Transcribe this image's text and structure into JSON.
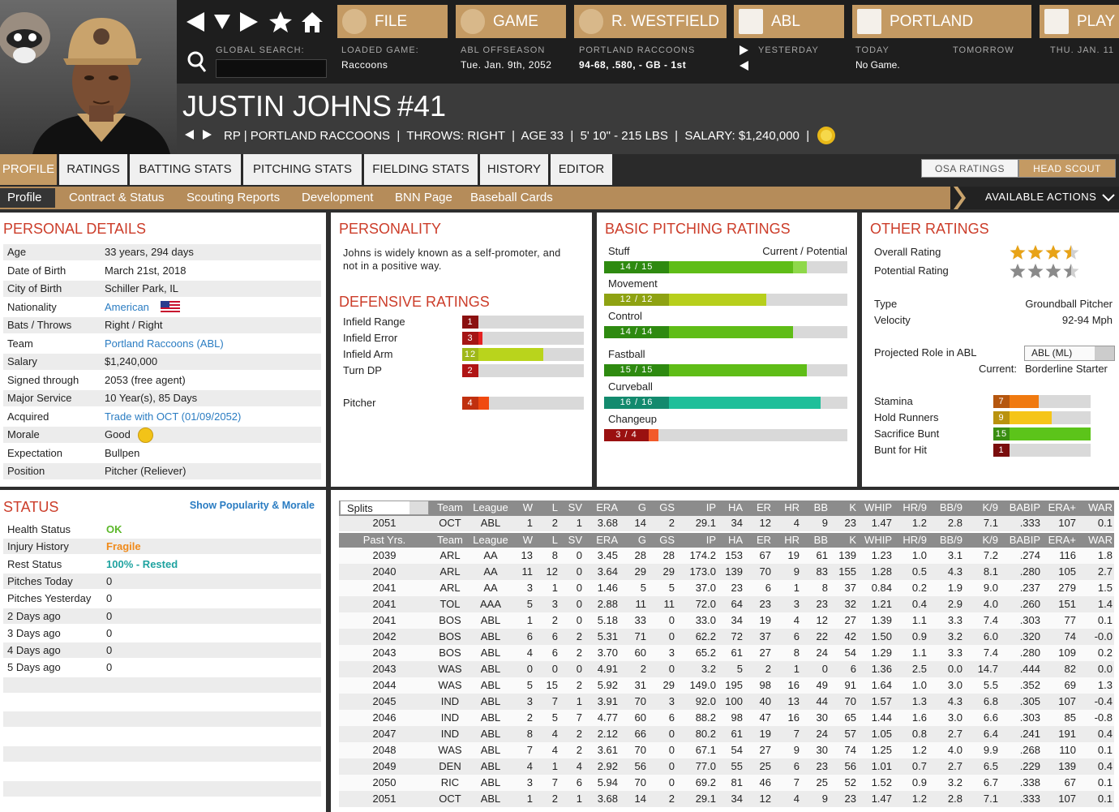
{
  "top_bar": {
    "global_search_label": "GLOBAL SEARCH:",
    "menu": [
      "FILE",
      "GAME",
      "R. WESTFIELD",
      "ABL",
      "PORTLAND",
      "PLAY"
    ],
    "info": [
      {
        "label": "LOADED GAME:",
        "value": "Raccoons"
      },
      {
        "label": "ABL OFFSEASON",
        "value": "Tue. Jan. 9th, 2052"
      },
      {
        "label": "PORTLAND RACCOONS",
        "value": "94-68, .580, - GB - 1st"
      }
    ],
    "schedule": [
      {
        "label": "YESTERDAY"
      },
      {
        "label": "TODAY",
        "value": "No Game."
      },
      {
        "label": "TOMORROW"
      },
      {
        "label": "THU. JAN. 11"
      }
    ]
  },
  "player": {
    "name": "JUSTIN JOHNS",
    "number": "#41",
    "info": "RP | PORTLAND RACCOONS  |  THROWS: RIGHT  |  AGE 33  |  5' 10\" - 215 LBS  |  SALARY: $1,240,000  |"
  },
  "tabs": [
    "PROFILE",
    "RATINGS",
    "BATTING STATS",
    "PITCHING STATS",
    "FIELDING STATS",
    "HISTORY",
    "EDITOR"
  ],
  "scout_toggle": [
    "OSA RATINGS",
    "HEAD SCOUT"
  ],
  "subnav": [
    "Profile",
    "Contract & Status",
    "Scouting Reports",
    "Development",
    "BNN Page",
    "Baseball Cards"
  ],
  "actions": "AVAILABLE ACTIONS",
  "personal_details": {
    "title": "PERSONAL DETAILS",
    "rows": [
      {
        "label": "Age",
        "value": "33 years, 294 days"
      },
      {
        "label": "Date of Birth",
        "value": "March 21st, 2018"
      },
      {
        "label": "City of Birth",
        "value": "Schiller Park, IL"
      },
      {
        "label": "Nationality",
        "value": "American",
        "color": "#2a7cc2"
      },
      {
        "label": "Bats / Throws",
        "value": "Right / Right"
      },
      {
        "label": "Team",
        "value": "Portland Raccoons (ABL)",
        "color": "#2a7cc2"
      },
      {
        "label": "Salary",
        "value": "$1,240,000"
      },
      {
        "label": "Signed through",
        "value": "2053 (free agent)"
      },
      {
        "label": "Major Service",
        "value": "10 Year(s), 85 Days"
      },
      {
        "label": "Acquired",
        "value": "Trade with OCT (01/09/2052)",
        "color": "#2a7cc2"
      },
      {
        "label": "Morale",
        "value": "Good"
      },
      {
        "label": "Expectation",
        "value": "Bullpen"
      },
      {
        "label": "Position",
        "value": "Pitcher (Reliever)"
      }
    ]
  },
  "personality": {
    "title": "PERSONALITY",
    "text": "Johns is widely known as a self-promoter, and not in a positive way."
  },
  "defensive_ratings": {
    "title": "DEFENSIVE RATINGS",
    "ratings": [
      {
        "name": "Infield Range",
        "value": 1,
        "color": "#c81a1a",
        "label_color": "#8b1010"
      },
      {
        "name": "Infield Error",
        "value": 3,
        "color": "#e42222",
        "label_color": "#a51515"
      },
      {
        "name": "Infield Arm",
        "value": 12,
        "color": "#b9d41c",
        "label_color": "#9fb818"
      },
      {
        "name": "Turn DP",
        "value": 2,
        "color": "#d81818",
        "label_color": "#b01515"
      },
      {
        "name": "Pitcher",
        "value": 4,
        "color": "#f04a10",
        "label_color": "#c0300f"
      }
    ]
  },
  "basic_pitching": {
    "title": "BASIC PITCHING RATINGS",
    "header": "Current / Potential",
    "ratings": [
      {
        "name": "Stuff",
        "label": "14 / 15",
        "current": 14,
        "potential": 15,
        "color": "#5fbd17",
        "potential_color": "#8fd84a",
        "label_color": "#2e8a10"
      },
      {
        "name": "Movement",
        "label": "12 / 12",
        "current": 12,
        "potential": 12,
        "color": "#b7cf1c",
        "potential_color": "#d3e36a",
        "label_color": "#8ea212"
      },
      {
        "name": "Control",
        "label": "14 / 14",
        "current": 14,
        "potential": 14,
        "color": "#5fbd17",
        "potential_color": "#8fd84a",
        "label_color": "#2e8a10"
      },
      {
        "name": "Fastball",
        "label": "15 / 15",
        "current": 15,
        "potential": 15,
        "color": "#5fbd17",
        "potential_color": "#8fd84a",
        "label_color": "#2e8a10"
      },
      {
        "name": "Curveball",
        "label": "16 / 16",
        "current": 16,
        "potential": 16,
        "color": "#1fbf9a",
        "potential_color": "#6fdcc0",
        "label_color": "#138a6e"
      },
      {
        "name": "Changeup",
        "label": "3 / 4",
        "current": 3,
        "potential": 4,
        "color": "#e02020",
        "potential_color": "#f25a2a",
        "label_color": "#9a1010"
      }
    ]
  },
  "other_ratings": {
    "title": "OTHER RATINGS",
    "overall": {
      "label": "Overall Rating",
      "stars": 3.5,
      "color": "#e8a317"
    },
    "potential": {
      "label": "Potential Rating",
      "stars": 3.5,
      "color": "#8a8a8a"
    },
    "type": {
      "label": "Type",
      "value": "Groundball Pitcher"
    },
    "velocity": {
      "label": "Velocity",
      "value": "92-94 Mph"
    },
    "projected_role": {
      "label": "Projected Role in ABL",
      "select": "ABL (ML)",
      "current_label": "Current:",
      "current": "Borderline Starter"
    },
    "ratings": [
      {
        "name": "Stamina",
        "value": 7,
        "color": "#f07a10",
        "label_color": "#b5560e"
      },
      {
        "name": "Hold Runners",
        "value": 9,
        "color": "#f5c518",
        "label_color": "#b9920e"
      },
      {
        "name": "Sacrifice Bunt",
        "value": 15,
        "color": "#5cc41a",
        "label_color": "#3a8e12"
      },
      {
        "name": "Bunt for Hit",
        "value": 1,
        "color": "#a01010",
        "label_color": "#7a0d0d"
      }
    ]
  },
  "status": {
    "title": "STATUS",
    "link": "Show Popularity & Morale",
    "rows": [
      {
        "label": "Health Status",
        "value": "OK",
        "color": "#5cb82a"
      },
      {
        "label": "Injury History",
        "value": "Fragile",
        "color": "#f08a1a"
      },
      {
        "label": "Rest Status",
        "value": "100% - Rested",
        "color": "#1fa3a0"
      },
      {
        "label": "Pitches Today",
        "value": "0"
      },
      {
        "label": "Pitches Yesterday",
        "value": "0"
      },
      {
        "label": "2 Days ago",
        "value": "0"
      },
      {
        "label": "3 Days ago",
        "value": "0"
      },
      {
        "label": "4 Days ago",
        "value": "0"
      },
      {
        "label": "5 Days ago",
        "value": "0"
      }
    ]
  },
  "stats": {
    "splits": "Splits",
    "past_label": "Past Yrs.",
    "columns": [
      "Team",
      "League",
      "W",
      "L",
      "SV",
      "ERA",
      "G",
      "GS",
      "IP",
      "HA",
      "ER",
      "HR",
      "BB",
      "K",
      "WHIP",
      "HR/9",
      "BB/9",
      "K/9",
      "BABIP",
      "ERA+",
      "WAR"
    ],
    "current": [
      "2051",
      "OCT",
      "ABL",
      "1",
      "2",
      "1",
      "3.68",
      "14",
      "2",
      "29.1",
      "34",
      "12",
      "4",
      "9",
      "23",
      "1.47",
      "1.2",
      "2.8",
      "7.1",
      ".333",
      "107",
      "0.1"
    ],
    "rows": [
      [
        "2039",
        "ARL",
        "AA",
        "13",
        "8",
        "0",
        "3.45",
        "28",
        "28",
        "174.2",
        "153",
        "67",
        "19",
        "61",
        "139",
        "1.23",
        "1.0",
        "3.1",
        "7.2",
        ".274",
        "116",
        "1.8"
      ],
      [
        "2040",
        "ARL",
        "AA",
        "11",
        "12",
        "0",
        "3.64",
        "29",
        "29",
        "173.0",
        "139",
        "70",
        "9",
        "83",
        "155",
        "1.28",
        "0.5",
        "4.3",
        "8.1",
        ".280",
        "105",
        "2.7"
      ],
      [
        "2041",
        "ARL",
        "AA",
        "3",
        "1",
        "0",
        "1.46",
        "5",
        "5",
        "37.0",
        "23",
        "6",
        "1",
        "8",
        "37",
        "0.84",
        "0.2",
        "1.9",
        "9.0",
        ".237",
        "279",
        "1.5"
      ],
      [
        "2041",
        "TOL",
        "AAA",
        "5",
        "3",
        "0",
        "2.88",
        "11",
        "11",
        "72.0",
        "64",
        "23",
        "3",
        "23",
        "32",
        "1.21",
        "0.4",
        "2.9",
        "4.0",
        ".260",
        "151",
        "1.4"
      ],
      [
        "2041",
        "BOS",
        "ABL",
        "1",
        "2",
        "0",
        "5.18",
        "33",
        "0",
        "33.0",
        "34",
        "19",
        "4",
        "12",
        "27",
        "1.39",
        "1.1",
        "3.3",
        "7.4",
        ".303",
        "77",
        "0.1"
      ],
      [
        "2042",
        "BOS",
        "ABL",
        "6",
        "6",
        "2",
        "5.31",
        "71",
        "0",
        "62.2",
        "72",
        "37",
        "6",
        "22",
        "42",
        "1.50",
        "0.9",
        "3.2",
        "6.0",
        ".320",
        "74",
        "-0.0"
      ],
      [
        "2043",
        "BOS",
        "ABL",
        "4",
        "6",
        "2",
        "3.70",
        "60",
        "3",
        "65.2",
        "61",
        "27",
        "8",
        "24",
        "54",
        "1.29",
        "1.1",
        "3.3",
        "7.4",
        ".280",
        "109",
        "0.2"
      ],
      [
        "2043",
        "WAS",
        "ABL",
        "0",
        "0",
        "0",
        "4.91",
        "2",
        "0",
        "3.2",
        "5",
        "2",
        "1",
        "0",
        "6",
        "1.36",
        "2.5",
        "0.0",
        "14.7",
        ".444",
        "82",
        "0.0"
      ],
      [
        "2044",
        "WAS",
        "ABL",
        "5",
        "15",
        "2",
        "5.92",
        "31",
        "29",
        "149.0",
        "195",
        "98",
        "16",
        "49",
        "91",
        "1.64",
        "1.0",
        "3.0",
        "5.5",
        ".352",
        "69",
        "1.3"
      ],
      [
        "2045",
        "IND",
        "ABL",
        "3",
        "7",
        "1",
        "3.91",
        "70",
        "3",
        "92.0",
        "100",
        "40",
        "13",
        "44",
        "70",
        "1.57",
        "1.3",
        "4.3",
        "6.8",
        ".305",
        "107",
        "-0.4"
      ],
      [
        "2046",
        "IND",
        "ABL",
        "2",
        "5",
        "7",
        "4.77",
        "60",
        "6",
        "88.2",
        "98",
        "47",
        "16",
        "30",
        "65",
        "1.44",
        "1.6",
        "3.0",
        "6.6",
        ".303",
        "85",
        "-0.8"
      ],
      [
        "2047",
        "IND",
        "ABL",
        "8",
        "4",
        "2",
        "2.12",
        "66",
        "0",
        "80.2",
        "61",
        "19",
        "7",
        "24",
        "57",
        "1.05",
        "0.8",
        "2.7",
        "6.4",
        ".241",
        "191",
        "0.4"
      ],
      [
        "2048",
        "WAS",
        "ABL",
        "7",
        "4",
        "2",
        "3.61",
        "70",
        "0",
        "67.1",
        "54",
        "27",
        "9",
        "30",
        "74",
        "1.25",
        "1.2",
        "4.0",
        "9.9",
        ".268",
        "110",
        "0.1"
      ],
      [
        "2049",
        "DEN",
        "ABL",
        "4",
        "1",
        "4",
        "2.92",
        "56",
        "0",
        "77.0",
        "55",
        "25",
        "6",
        "23",
        "56",
        "1.01",
        "0.7",
        "2.7",
        "6.5",
        ".229",
        "139",
        "0.4"
      ],
      [
        "2050",
        "RIC",
        "ABL",
        "3",
        "7",
        "6",
        "5.94",
        "70",
        "0",
        "69.2",
        "81",
        "46",
        "7",
        "25",
        "52",
        "1.52",
        "0.9",
        "3.2",
        "6.7",
        ".338",
        "67",
        "0.1"
      ],
      [
        "2051",
        "OCT",
        "ABL",
        "1",
        "2",
        "1",
        "3.68",
        "14",
        "2",
        "29.1",
        "34",
        "12",
        "4",
        "9",
        "23",
        "1.47",
        "1.2",
        "2.8",
        "7.1",
        ".333",
        "107",
        "0.1"
      ]
    ]
  }
}
